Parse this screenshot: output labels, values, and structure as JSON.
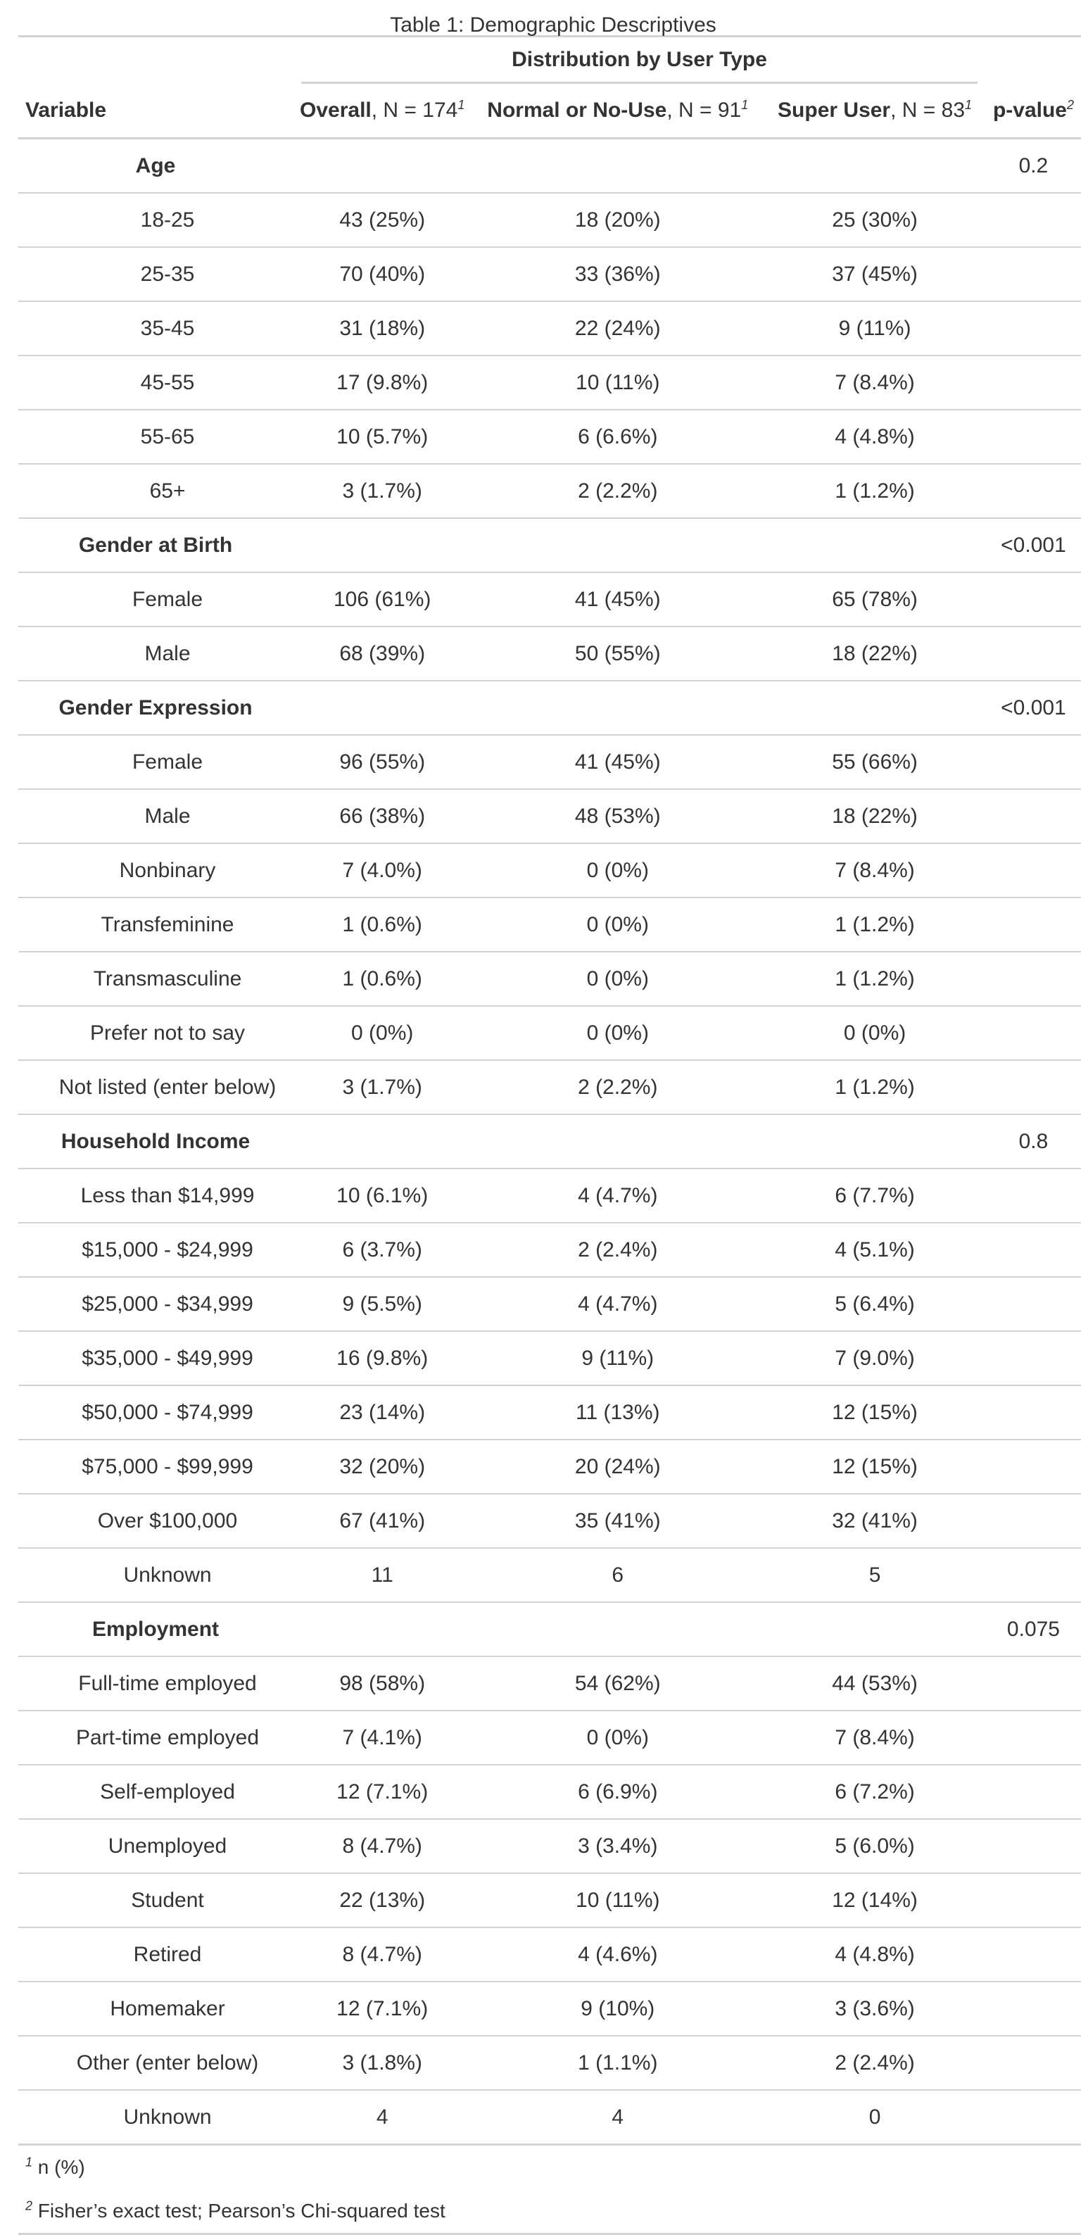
{
  "caption": "Table 1: Demographic Descriptives",
  "spanner_label": "Distribution by User Type",
  "columns": {
    "variable": "Variable",
    "overall": {
      "name": "Overall",
      "n": ", N = 174",
      "fn": "1"
    },
    "normal": {
      "name": "Normal or No-Use",
      "n": ", N = 91",
      "fn": "1"
    },
    "super": {
      "name": "Super User",
      "n": ", N = 83",
      "fn": "1"
    },
    "pvalue": {
      "name": "p-value",
      "fn": "2"
    }
  },
  "rows": [
    {
      "type": "group",
      "label": "Age",
      "overall": "",
      "normal": "",
      "super": "",
      "p": "0.2"
    },
    {
      "type": "level",
      "label": "18-25",
      "overall": "43 (25%)",
      "normal": "18 (20%)",
      "super": "25 (30%)",
      "p": ""
    },
    {
      "type": "level",
      "label": "25-35",
      "overall": "70 (40%)",
      "normal": "33 (36%)",
      "super": "37 (45%)",
      "p": ""
    },
    {
      "type": "level",
      "label": "35-45",
      "overall": "31 (18%)",
      "normal": "22 (24%)",
      "super": "9 (11%)",
      "p": ""
    },
    {
      "type": "level",
      "label": "45-55",
      "overall": "17 (9.8%)",
      "normal": "10 (11%)",
      "super": "7 (8.4%)",
      "p": ""
    },
    {
      "type": "level",
      "label": "55-65",
      "overall": "10 (5.7%)",
      "normal": "6 (6.6%)",
      "super": "4 (4.8%)",
      "p": ""
    },
    {
      "type": "level",
      "label": "65+",
      "overall": "3 (1.7%)",
      "normal": "2 (2.2%)",
      "super": "1 (1.2%)",
      "p": ""
    },
    {
      "type": "group",
      "label": "Gender at Birth",
      "overall": "",
      "normal": "",
      "super": "",
      "p": "<0.001"
    },
    {
      "type": "level",
      "label": "Female",
      "overall": "106 (61%)",
      "normal": "41 (45%)",
      "super": "65 (78%)",
      "p": ""
    },
    {
      "type": "level",
      "label": "Male",
      "overall": "68 (39%)",
      "normal": "50 (55%)",
      "super": "18 (22%)",
      "p": ""
    },
    {
      "type": "group",
      "label": "Gender Expression",
      "overall": "",
      "normal": "",
      "super": "",
      "p": "<0.001"
    },
    {
      "type": "level",
      "label": "Female",
      "overall": "96 (55%)",
      "normal": "41 (45%)",
      "super": "55 (66%)",
      "p": ""
    },
    {
      "type": "level",
      "label": "Male",
      "overall": "66 (38%)",
      "normal": "48 (53%)",
      "super": "18 (22%)",
      "p": ""
    },
    {
      "type": "level",
      "label": "Nonbinary",
      "overall": "7 (4.0%)",
      "normal": "0 (0%)",
      "super": "7 (8.4%)",
      "p": ""
    },
    {
      "type": "level",
      "label": "Transfeminine",
      "overall": "1 (0.6%)",
      "normal": "0 (0%)",
      "super": "1 (1.2%)",
      "p": ""
    },
    {
      "type": "level",
      "label": "Transmasculine",
      "overall": "1 (0.6%)",
      "normal": "0 (0%)",
      "super": "1 (1.2%)",
      "p": ""
    },
    {
      "type": "level",
      "label": "Prefer not to say",
      "overall": "0 (0%)",
      "normal": "0 (0%)",
      "super": "0 (0%)",
      "p": ""
    },
    {
      "type": "level",
      "label": "Not listed (enter below)",
      "overall": "3 (1.7%)",
      "normal": "2 (2.2%)",
      "super": "1 (1.2%)",
      "p": ""
    },
    {
      "type": "group",
      "label": "Household Income",
      "overall": "",
      "normal": "",
      "super": "",
      "p": "0.8"
    },
    {
      "type": "level",
      "label": "Less than $14,999",
      "overall": "10 (6.1%)",
      "normal": "4 (4.7%)",
      "super": "6 (7.7%)",
      "p": ""
    },
    {
      "type": "level",
      "label": "$15,000 - $24,999",
      "overall": "6 (3.7%)",
      "normal": "2 (2.4%)",
      "super": "4 (5.1%)",
      "p": ""
    },
    {
      "type": "level",
      "label": "$25,000 - $34,999",
      "overall": "9 (5.5%)",
      "normal": "4 (4.7%)",
      "super": "5 (6.4%)",
      "p": ""
    },
    {
      "type": "level",
      "label": "$35,000 - $49,999",
      "overall": "16 (9.8%)",
      "normal": "9 (11%)",
      "super": "7 (9.0%)",
      "p": ""
    },
    {
      "type": "level",
      "label": "$50,000 - $74,999",
      "overall": "23 (14%)",
      "normal": "11 (13%)",
      "super": "12 (15%)",
      "p": ""
    },
    {
      "type": "level",
      "label": "$75,000 - $99,999",
      "overall": "32 (20%)",
      "normal": "20 (24%)",
      "super": "12 (15%)",
      "p": ""
    },
    {
      "type": "level",
      "label": "Over $100,000",
      "overall": "67 (41%)",
      "normal": "35 (41%)",
      "super": "32 (41%)",
      "p": ""
    },
    {
      "type": "level",
      "label": "Unknown",
      "overall": "11",
      "normal": "6",
      "super": "5",
      "p": ""
    },
    {
      "type": "group",
      "label": "Employment",
      "overall": "",
      "normal": "",
      "super": "",
      "p": "0.075"
    },
    {
      "type": "level",
      "label": "Full-time employed",
      "overall": "98 (58%)",
      "normal": "54 (62%)",
      "super": "44 (53%)",
      "p": ""
    },
    {
      "type": "level",
      "label": "Part-time employed",
      "overall": "7 (4.1%)",
      "normal": "0 (0%)",
      "super": "7 (8.4%)",
      "p": ""
    },
    {
      "type": "level",
      "label": "Self-employed",
      "overall": "12 (7.1%)",
      "normal": "6 (6.9%)",
      "super": "6 (7.2%)",
      "p": ""
    },
    {
      "type": "level",
      "label": "Unemployed",
      "overall": "8 (4.7%)",
      "normal": "3 (3.4%)",
      "super": "5 (6.0%)",
      "p": ""
    },
    {
      "type": "level",
      "label": "Student",
      "overall": "22 (13%)",
      "normal": "10 (11%)",
      "super": "12 (14%)",
      "p": ""
    },
    {
      "type": "level",
      "label": "Retired",
      "overall": "8 (4.7%)",
      "normal": "4 (4.6%)",
      "super": "4 (4.8%)",
      "p": ""
    },
    {
      "type": "level",
      "label": "Homemaker",
      "overall": "12 (7.1%)",
      "normal": "9 (10%)",
      "super": "3 (3.6%)",
      "p": ""
    },
    {
      "type": "level",
      "label": "Other (enter below)",
      "overall": "3 (1.8%)",
      "normal": "1 (1.1%)",
      "super": "2 (2.4%)",
      "p": ""
    },
    {
      "type": "level",
      "label": "Unknown",
      "overall": "4",
      "normal": "4",
      "super": "0",
      "p": ""
    }
  ],
  "footnotes": [
    {
      "mark": "1",
      "text": "n (%)"
    },
    {
      "mark": "2",
      "text": "Fisher’s exact test; Pearson’s Chi-squared test"
    }
  ],
  "colors": {
    "text": "#333333",
    "rule": "#d3d3d3",
    "background": "#ffffff"
  }
}
